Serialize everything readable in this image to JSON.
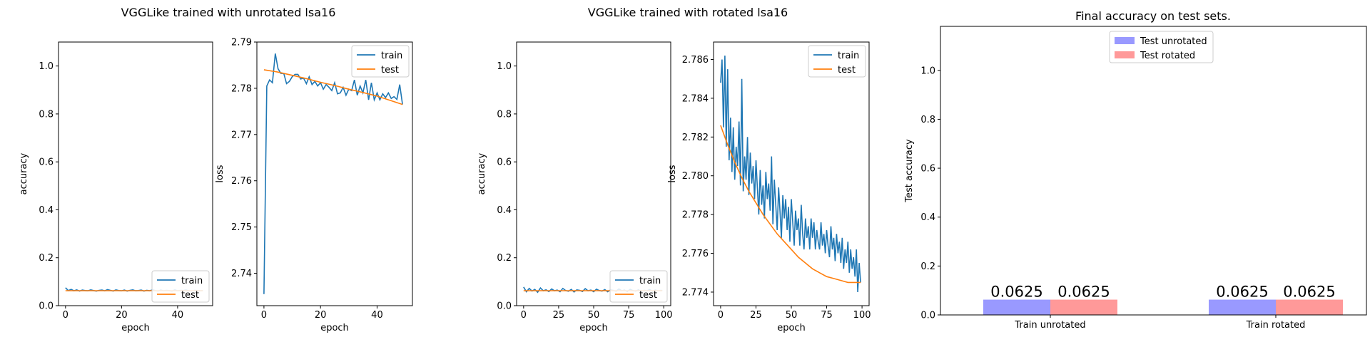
{
  "figure": {
    "group_titles": [
      "VGGLike trained with unrotated lsa16",
      "VGGLike trained with rotated lsa16"
    ]
  },
  "colors": {
    "train": "#1f77b4",
    "test": "#ff7f0e",
    "bar_unrotated": "#9999ff",
    "bar_rotated": "#ff9999"
  },
  "chart_data": [
    {
      "type": "line",
      "xlabel": "epoch",
      "ylabel": "accuracy",
      "xlim": [
        -2.5,
        52.5
      ],
      "ylim": [
        0,
        1.1
      ],
      "xticks": [
        0,
        20,
        40
      ],
      "yticks": [
        0.0,
        0.2,
        0.4,
        0.6,
        0.8,
        1.0
      ],
      "legend": "lower right",
      "series": [
        {
          "name": "train",
          "x": [
            0,
            1,
            2,
            3,
            4,
            5,
            6,
            7,
            8,
            9,
            10,
            11,
            12,
            13,
            14,
            15,
            16,
            17,
            18,
            19,
            20,
            21,
            22,
            23,
            24,
            25,
            26,
            27,
            28,
            29,
            30,
            31,
            32,
            33,
            34,
            35,
            36,
            37,
            38,
            39,
            40,
            41,
            42,
            43,
            44,
            45,
            46,
            47,
            48,
            49
          ],
          "y": [
            0.075,
            0.063,
            0.068,
            0.062,
            0.066,
            0.061,
            0.065,
            0.063,
            0.062,
            0.066,
            0.063,
            0.061,
            0.064,
            0.065,
            0.062,
            0.067,
            0.064,
            0.061,
            0.066,
            0.063,
            0.062,
            0.065,
            0.061,
            0.064,
            0.066,
            0.062,
            0.063,
            0.065,
            0.061,
            0.064,
            0.062,
            0.066,
            0.063,
            0.061,
            0.065,
            0.062,
            0.064,
            0.063,
            0.061,
            0.066,
            0.062,
            0.064,
            0.063,
            0.065,
            0.062,
            0.061,
            0.064,
            0.063,
            0.062,
            0.063
          ]
        },
        {
          "name": "test",
          "x": [
            0,
            49
          ],
          "y": [
            0.0625,
            0.0625
          ]
        }
      ]
    },
    {
      "type": "line",
      "xlabel": "epoch",
      "ylabel": "loss",
      "xlim": [
        -2.5,
        52.5
      ],
      "ylim": [
        2.733,
        2.79
      ],
      "xticks": [
        0,
        20,
        40
      ],
      "yticks": [
        2.74,
        2.75,
        2.76,
        2.77,
        2.78,
        2.79
      ],
      "legend": "upper right",
      "series": [
        {
          "name": "train",
          "x": [
            0,
            1,
            2,
            3,
            4,
            5,
            6,
            7,
            8,
            9,
            10,
            11,
            12,
            13,
            14,
            15,
            16,
            17,
            18,
            19,
            20,
            21,
            22,
            23,
            24,
            25,
            26,
            27,
            28,
            29,
            30,
            31,
            32,
            33,
            34,
            35,
            36,
            37,
            38,
            39,
            40,
            41,
            42,
            43,
            44,
            45,
            46,
            47,
            48,
            49
          ],
          "y": [
            2.7355,
            2.7805,
            2.7818,
            2.7812,
            2.7875,
            2.7842,
            2.7832,
            2.7832,
            2.781,
            2.7815,
            2.7825,
            2.783,
            2.783,
            2.782,
            2.7822,
            2.781,
            2.7825,
            2.7808,
            2.7815,
            2.7805,
            2.7812,
            2.7798,
            2.7808,
            2.7802,
            2.7795,
            2.7812,
            2.7788,
            2.779,
            2.7802,
            2.7785,
            2.7798,
            2.7795,
            2.7818,
            2.7785,
            2.7805,
            2.779,
            2.7818,
            2.7775,
            2.7812,
            2.7775,
            2.779,
            2.7775,
            2.7788,
            2.778,
            2.779,
            2.7778,
            2.7782,
            2.7776,
            2.7808,
            2.7765
          ]
        },
        {
          "name": "test",
          "x": [
            0,
            5,
            10,
            15,
            20,
            25,
            30,
            35,
            40,
            45,
            49
          ],
          "y": [
            2.784,
            2.7835,
            2.7828,
            2.7821,
            2.7813,
            2.7806,
            2.7798,
            2.7791,
            2.7783,
            2.7773,
            2.7765
          ]
        }
      ]
    },
    {
      "type": "line",
      "xlabel": "epoch",
      "ylabel": "accuracy",
      "xlim": [
        -5,
        105
      ],
      "ylim": [
        0,
        1.1
      ],
      "xticks": [
        0,
        25,
        50,
        75,
        100
      ],
      "yticks": [
        0.0,
        0.2,
        0.4,
        0.6,
        0.8,
        1.0
      ],
      "legend": "lower right",
      "series": [
        {
          "name": "train",
          "x": [
            0,
            2,
            4,
            6,
            8,
            10,
            12,
            14,
            16,
            18,
            20,
            22,
            24,
            26,
            28,
            30,
            32,
            34,
            36,
            38,
            40,
            42,
            44,
            46,
            48,
            50,
            52,
            54,
            56,
            58,
            60,
            62,
            64,
            66,
            68,
            70,
            72,
            74,
            76,
            78,
            80,
            82,
            84,
            86,
            88,
            90,
            92,
            94,
            96,
            98,
            99
          ],
          "y": [
            0.078,
            0.058,
            0.072,
            0.061,
            0.068,
            0.056,
            0.074,
            0.062,
            0.066,
            0.059,
            0.07,
            0.062,
            0.065,
            0.058,
            0.072,
            0.063,
            0.06,
            0.068,
            0.057,
            0.066,
            0.064,
            0.059,
            0.071,
            0.062,
            0.065,
            0.058,
            0.069,
            0.063,
            0.061,
            0.067,
            0.058,
            0.066,
            0.064,
            0.06,
            0.07,
            0.062,
            0.065,
            0.059,
            0.068,
            0.063,
            0.061,
            0.066,
            0.059,
            0.064,
            0.062,
            0.067,
            0.06,
            0.065,
            0.062,
            0.064,
            0.063
          ]
        },
        {
          "name": "test",
          "x": [
            0,
            99
          ],
          "y": [
            0.0625,
            0.0625
          ]
        }
      ]
    },
    {
      "type": "line",
      "xlabel": "epoch",
      "ylabel": "loss",
      "xlim": [
        -5,
        105
      ],
      "ylim": [
        2.7733,
        2.7869
      ],
      "xticks": [
        0,
        25,
        50,
        75,
        100
      ],
      "yticks": [
        2.774,
        2.776,
        2.778,
        2.78,
        2.782,
        2.784,
        2.786
      ],
      "legend": "upper right",
      "series": [
        {
          "name": "train",
          "x": [
            0,
            1,
            2,
            3,
            4,
            5,
            6,
            7,
            8,
            9,
            10,
            11,
            12,
            13,
            14,
            15,
            16,
            17,
            18,
            19,
            20,
            21,
            22,
            23,
            24,
            25,
            26,
            27,
            28,
            29,
            30,
            31,
            32,
            33,
            34,
            35,
            36,
            37,
            38,
            39,
            40,
            41,
            42,
            43,
            44,
            45,
            46,
            47,
            48,
            49,
            50,
            51,
            52,
            53,
            54,
            55,
            56,
            57,
            58,
            59,
            60,
            61,
            62,
            63,
            64,
            65,
            66,
            67,
            68,
            69,
            70,
            71,
            72,
            73,
            74,
            75,
            76,
            77,
            78,
            79,
            80,
            81,
            82,
            83,
            84,
            85,
            86,
            87,
            88,
            89,
            90,
            91,
            92,
            93,
            94,
            95,
            96,
            97,
            98,
            99
          ],
          "y": [
            2.7848,
            2.786,
            2.7825,
            2.7862,
            2.7815,
            2.7855,
            2.7808,
            2.783,
            2.7802,
            2.7825,
            2.7798,
            2.7815,
            2.7805,
            2.7828,
            2.7795,
            2.785,
            2.7792,
            2.781,
            2.7798,
            2.782,
            2.779,
            2.7812,
            2.7796,
            2.7805,
            2.7788,
            2.7808,
            2.7794,
            2.778,
            2.7803,
            2.7785,
            2.7795,
            2.7778,
            2.7802,
            2.7788,
            2.7796,
            2.7782,
            2.781,
            2.7775,
            2.7798,
            2.7785,
            2.7772,
            2.7794,
            2.7782,
            2.7768,
            2.779,
            2.7778,
            2.7788,
            2.7772,
            2.7784,
            2.7766,
            2.7788,
            2.7776,
            2.7764,
            2.7782,
            2.7772,
            2.7778,
            2.7764,
            2.7785,
            2.777,
            2.7762,
            2.7778,
            2.7768,
            2.7774,
            2.7762,
            2.7778,
            2.7768,
            2.7776,
            2.7762,
            2.7772,
            2.7766,
            2.7762,
            2.7776,
            2.7764,
            2.777,
            2.776,
            2.7772,
            2.7764,
            2.7758,
            2.7774,
            2.7762,
            2.7768,
            2.7756,
            2.777,
            2.776,
            2.7766,
            2.7755,
            2.7768,
            2.7752,
            2.7762,
            2.7755,
            2.7766,
            2.775,
            2.7762,
            2.7752,
            2.7758,
            2.7748,
            2.7762,
            2.774,
            2.7755,
            2.7745
          ]
        },
        {
          "name": "test",
          "x": [
            0,
            5,
            10,
            15,
            20,
            25,
            30,
            35,
            40,
            45,
            50,
            55,
            60,
            65,
            70,
            75,
            80,
            85,
            90,
            95,
            99
          ],
          "y": [
            2.7826,
            2.7816,
            2.7807,
            2.7799,
            2.7792,
            2.7786,
            2.778,
            2.7775,
            2.777,
            2.7766,
            2.7762,
            2.7758,
            2.7755,
            2.7752,
            2.775,
            2.7748,
            2.7747,
            2.7746,
            2.7745,
            2.7745,
            2.7745
          ]
        }
      ]
    },
    {
      "type": "bar",
      "title": "Final accuracy on test sets.",
      "ylabel": "Test accuracy",
      "categories": [
        "Train unrotated",
        "Train rotated"
      ],
      "ylim": [
        0,
        1.18
      ],
      "yticks": [
        0.0,
        0.2,
        0.4,
        0.6,
        0.8,
        1.0
      ],
      "legend": "upper center",
      "series": [
        {
          "name": "Test unrotated",
          "values": [
            0.0625,
            0.0625
          ],
          "labels": [
            "0.0625",
            "0.0625"
          ]
        },
        {
          "name": "Test rotated",
          "values": [
            0.0625,
            0.0625
          ],
          "labels": [
            "0.0625",
            "0.0625"
          ]
        }
      ]
    }
  ]
}
